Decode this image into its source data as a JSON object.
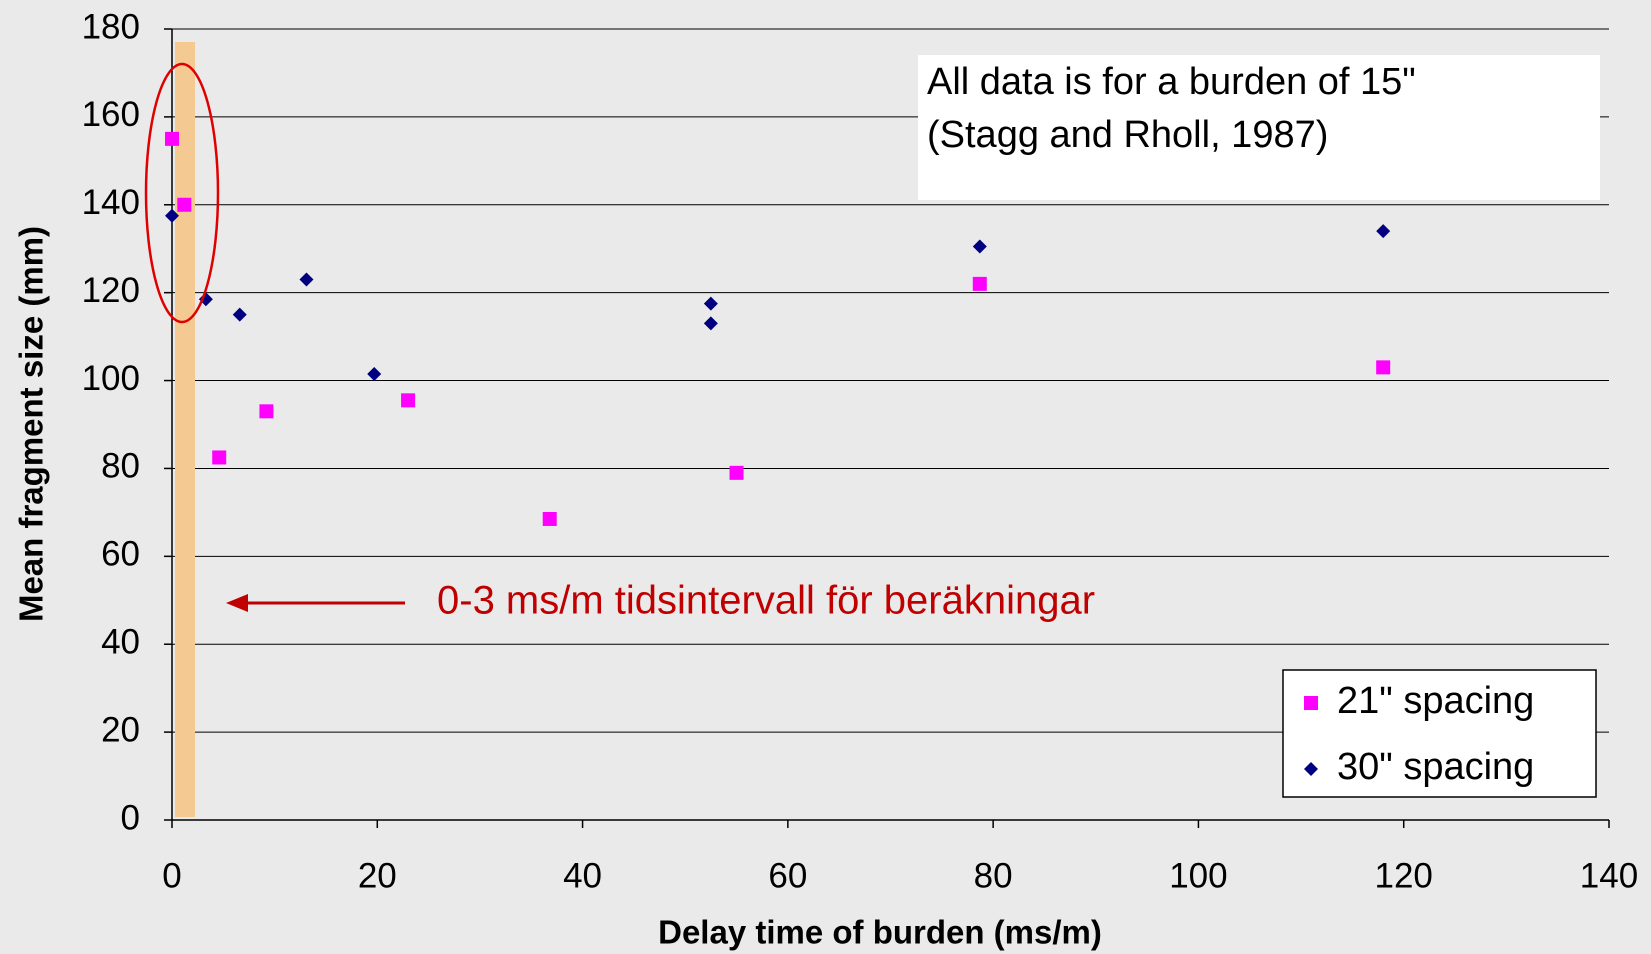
{
  "chart_data": {
    "type": "scatter",
    "xlabel": "Delay time of burden (ms/m)",
    "ylabel": "Mean fragment size (mm)",
    "annotations": [
      "All data is for a burden of 15\"",
      "(Stagg and Rholl, 1987)",
      "0-3 ms/m tidsintervall för beräkningar"
    ],
    "xlim": [
      0,
      140
    ],
    "xticks": [
      0,
      20,
      40,
      60,
      80,
      100,
      120,
      140
    ],
    "ylim": [
      0,
      180
    ],
    "yticks": [
      0,
      20,
      40,
      60,
      80,
      100,
      120,
      140,
      160,
      180
    ],
    "grid": true,
    "legend": "lower right",
    "series": [
      {
        "name": "21\" spacing",
        "color": "#ff00ff",
        "marker": "square",
        "x": [
          0,
          1.2,
          4.6,
          9.2,
          23,
          36.8,
          55,
          78.7,
          118
        ],
        "values": [
          155,
          140,
          82.5,
          93,
          95.5,
          68.5,
          79,
          122,
          103
        ]
      },
      {
        "name": "30\" spacing",
        "color": "#000080",
        "marker": "diamond",
        "x": [
          0,
          3.3,
          6.6,
          13.1,
          19.7,
          52.5,
          52.5,
          78.7,
          118
        ],
        "values": [
          137.5,
          118.5,
          115,
          123,
          101.5,
          117.5,
          113,
          130.5,
          134
        ]
      }
    ]
  }
}
